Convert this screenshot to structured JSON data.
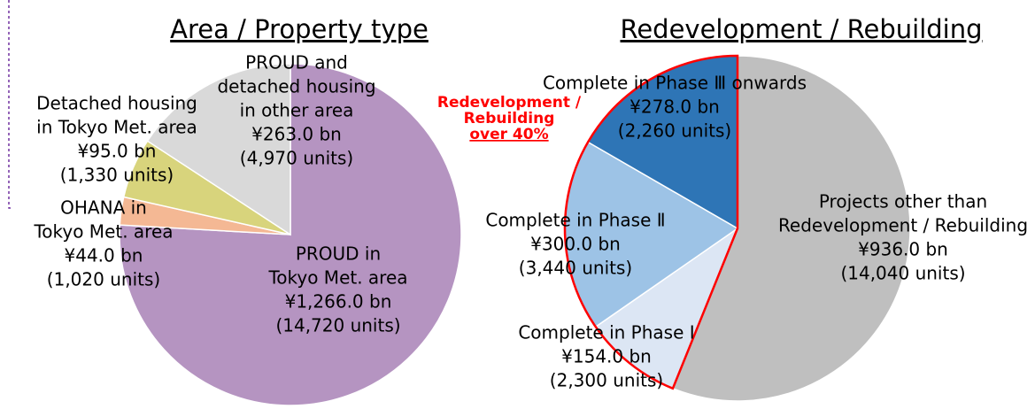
{
  "chart_data": [
    {
      "type": "pie",
      "title": "Area / Property type",
      "categories": [
        [
          "PROUD in",
          "Tokyo Met. area"
        ],
        [
          "OHANA in",
          "Tokyo Met. area"
        ],
        [
          "Detached housing",
          "in Tokyo Met. area"
        ],
        [
          "PROUD and",
          "detached housing",
          "in other area"
        ]
      ],
      "values": [
        1266.0,
        44.0,
        95.0,
        263.0
      ],
      "value_labels": [
        "¥1,266.0 bn",
        "¥44.0 bn",
        "¥95.0 bn",
        "¥263.0 bn"
      ],
      "units": [
        "(14,720 units)",
        "(1,020 units)",
        "(1,330 units)",
        "(4,970 units)"
      ],
      "colors": [
        "#b594c1",
        "#f4b894",
        "#d8d47c",
        "#d9d9d9"
      ]
    },
    {
      "type": "pie",
      "title": "Redevelopment / Rebuilding",
      "categories": [
        [
          "Projects other than",
          "Redevelopment / Rebuilding"
        ],
        [
          "Complete in Phase Ⅰ"
        ],
        [
          "Complete in Phase Ⅱ"
        ],
        [
          "Complete in Phase Ⅲ onwards"
        ]
      ],
      "values": [
        936.0,
        154.0,
        300.0,
        278.0
      ],
      "value_labels": [
        "¥936.0 bn",
        "¥154.0 bn",
        "¥300.0 bn",
        "¥278.0 bn"
      ],
      "units": [
        "(14,040 units)",
        "(2,300 units)",
        "(3,440 units)",
        "(2,260 units)"
      ],
      "colors": [
        "#bfbfbf",
        "#dce6f4",
        "#9dc3e6",
        "#2e75b6"
      ],
      "annotation": [
        "Redevelopment /",
        "Rebuilding",
        "over 40%"
      ],
      "annotation_color": "#ff0000"
    }
  ]
}
